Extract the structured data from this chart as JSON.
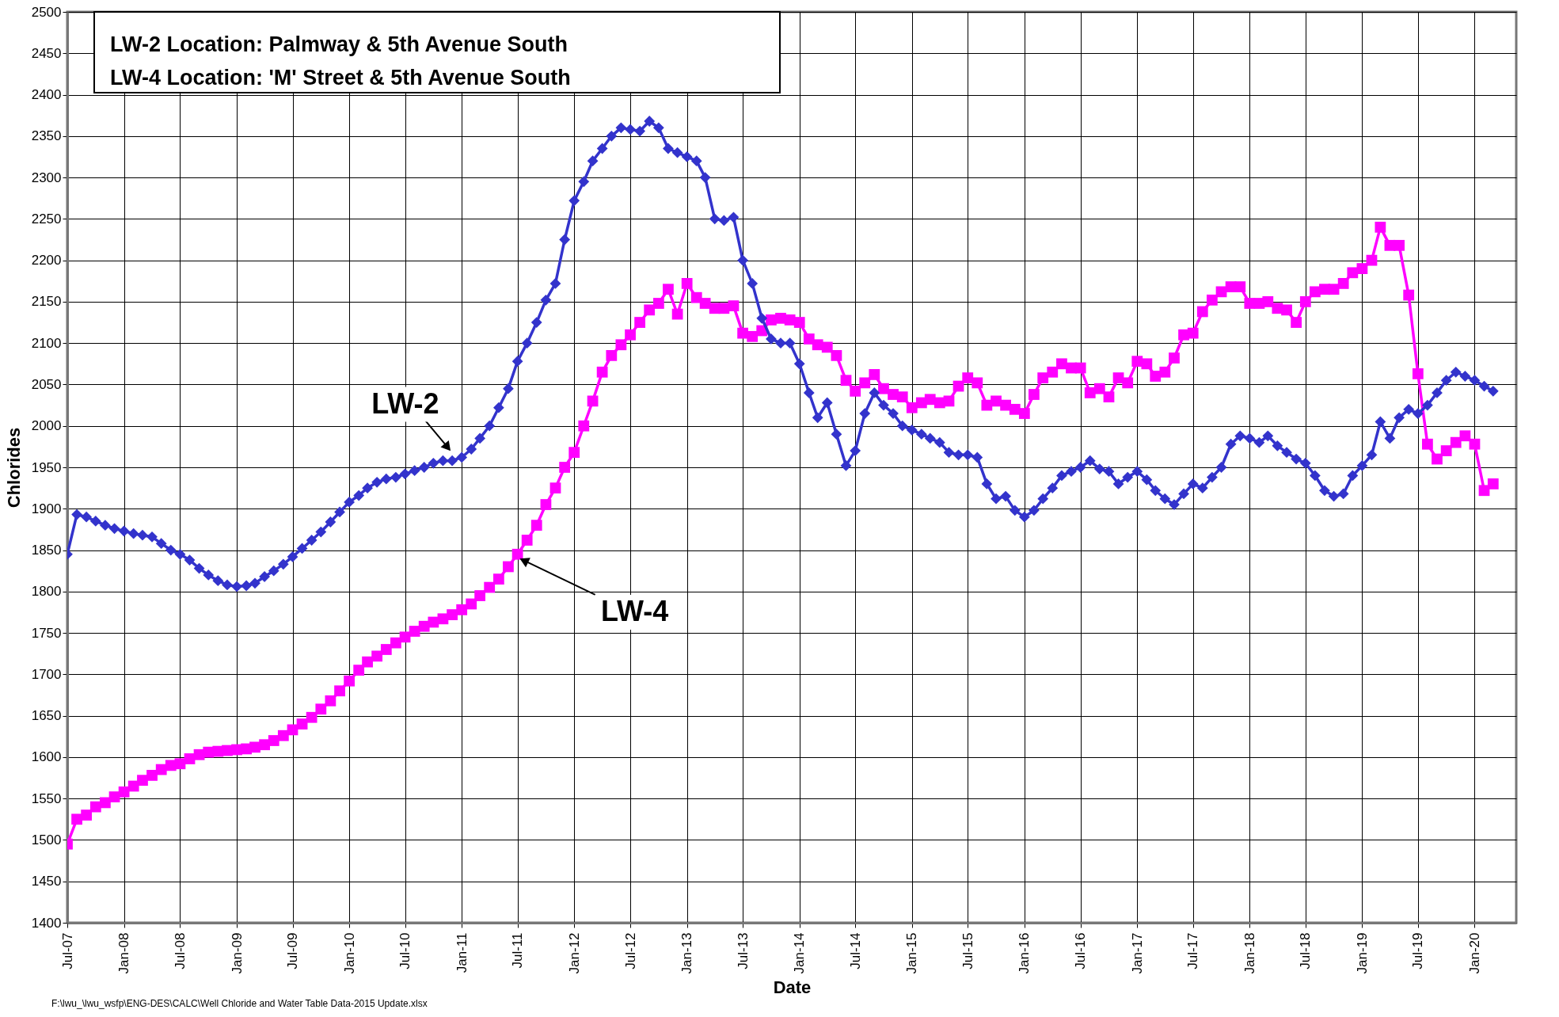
{
  "chart_data": {
    "type": "line",
    "xlabel": "Date",
    "ylabel": "Chlorides",
    "annotations": [
      "LW-2 Location: Palmway  & 5th Avenue South",
      "LW-4 Location:  'M' Street & 5th Avenue South",
      "F:\\lwu_\\lwu_wsfp\\ENG-DES\\CALC\\Well Chloride and Water Table Data-2015 Update.xlsx"
    ],
    "x": [
      "2007-07",
      "2007-08",
      "2007-09",
      "2007-10",
      "2007-11",
      "2007-12",
      "2008-01",
      "2008-02",
      "2008-03",
      "2008-04",
      "2008-05",
      "2008-06",
      "2008-07",
      "2008-08",
      "2008-09",
      "2008-10",
      "2008-11",
      "2008-12",
      "2009-01",
      "2009-02",
      "2009-03",
      "2009-04",
      "2009-05",
      "2009-06",
      "2009-07",
      "2009-08",
      "2009-09",
      "2009-10",
      "2009-11",
      "2009-12",
      "2010-01",
      "2010-02",
      "2010-03",
      "2010-04",
      "2010-05",
      "2010-06",
      "2010-07",
      "2010-08",
      "2010-09",
      "2010-10",
      "2010-11",
      "2010-12",
      "2011-01",
      "2011-02",
      "2011-03",
      "2011-04",
      "2011-05",
      "2011-06",
      "2011-07",
      "2011-08",
      "2011-09",
      "2011-10",
      "2011-11",
      "2011-12",
      "2012-01",
      "2012-02",
      "2012-03",
      "2012-04",
      "2012-05",
      "2012-06",
      "2012-07",
      "2012-08",
      "2012-09",
      "2012-10",
      "2012-11",
      "2012-12",
      "2013-01",
      "2013-02",
      "2013-03",
      "2013-04",
      "2013-05",
      "2013-06",
      "2013-07",
      "2013-08",
      "2013-09",
      "2013-10",
      "2013-11",
      "2013-12",
      "2014-01",
      "2014-02",
      "2014-03",
      "2014-04",
      "2014-05",
      "2014-06",
      "2014-07",
      "2014-08",
      "2014-09",
      "2014-10",
      "2014-11",
      "2014-12",
      "2015-01",
      "2015-02",
      "2015-03",
      "2015-04",
      "2015-05",
      "2015-06",
      "2015-07",
      "2015-08",
      "2015-09",
      "2015-10",
      "2015-11",
      "2015-12",
      "2016-01",
      "2016-02",
      "2016-03",
      "2016-04",
      "2016-05",
      "2016-06",
      "2016-07",
      "2016-08",
      "2016-09",
      "2016-10",
      "2016-11",
      "2016-12",
      "2017-01",
      "2017-02",
      "2017-03",
      "2017-04",
      "2017-05",
      "2017-06",
      "2017-07",
      "2017-08",
      "2017-09",
      "2017-10",
      "2017-11",
      "2017-12",
      "2018-01",
      "2018-02",
      "2018-03",
      "2018-04",
      "2018-05",
      "2018-06",
      "2018-07",
      "2018-08",
      "2018-09",
      "2018-10",
      "2018-11",
      "2018-12",
      "2019-01",
      "2019-02",
      "2019-03",
      "2019-04",
      "2019-05",
      "2019-06",
      "2019-07",
      "2019-08",
      "2019-09",
      "2019-10",
      "2019-11",
      "2019-12",
      "2020-01",
      "2020-02",
      "2020-03"
    ],
    "series": [
      {
        "name": "LW-2",
        "color": "#3333cc",
        "marker": "diamond",
        "values": [
          1845,
          1893,
          1890,
          1885,
          1880,
          1876,
          1873,
          1870,
          1868,
          1866,
          1858,
          1850,
          1845,
          1838,
          1828,
          1820,
          1813,
          1808,
          1806,
          1807,
          1810,
          1818,
          1825,
          1833,
          1842,
          1852,
          1862,
          1872,
          1884,
          1896,
          1908,
          1916,
          1925,
          1932,
          1936,
          1938,
          1942,
          1946,
          1950,
          1955,
          1958,
          1958,
          1962,
          1972,
          1985,
          2000,
          2022,
          2045,
          2078,
          2100,
          2125,
          2152,
          2172,
          2225,
          2272,
          2295,
          2320,
          2335,
          2350,
          2360,
          2358,
          2356,
          2368,
          2360,
          2335,
          2330,
          2325,
          2320,
          2300,
          2250,
          2248,
          2252,
          2200,
          2172,
          2130,
          2105,
          2100,
          2100,
          2075,
          2040,
          2010,
          2028,
          1990,
          1952,
          1970,
          2015,
          2040,
          2025,
          2015,
          2000,
          1995,
          1990,
          1985,
          1980,
          1968,
          1965,
          1965,
          1962,
          1930,
          1912,
          1915,
          1898,
          1890,
          1898,
          1912,
          1925,
          1940,
          1945,
          1950,
          1958,
          1948,
          1945,
          1930,
          1938,
          1945,
          1935,
          1922,
          1912,
          1905,
          1918,
          1930,
          1925,
          1938,
          1950,
          1978,
          1988,
          1985,
          1980,
          1988,
          1976,
          1968,
          1960,
          1955,
          1940,
          1922,
          1915,
          1918,
          1940,
          1952,
          1965,
          2005,
          1985,
          2010,
          2020,
          2015,
          2025,
          2040,
          2055,
          2065,
          2060,
          2055,
          2048,
          2042
        ]
      },
      {
        "name": "LW-4",
        "color": "#ff00ff",
        "marker": "square",
        "values": [
          1495,
          1525,
          1530,
          1540,
          1545,
          1552,
          1558,
          1565,
          1572,
          1578,
          1585,
          1590,
          1592,
          1598,
          1603,
          1606,
          1607,
          1608,
          1609,
          1610,
          1612,
          1615,
          1620,
          1626,
          1633,
          1640,
          1648,
          1658,
          1668,
          1680,
          1692,
          1705,
          1715,
          1722,
          1730,
          1738,
          1745,
          1752,
          1758,
          1763,
          1767,
          1772,
          1778,
          1785,
          1795,
          1805,
          1815,
          1830,
          1845,
          1862,
          1880,
          1905,
          1925,
          1950,
          1968,
          2000,
          2030,
          2065,
          2085,
          2098,
          2110,
          2125,
          2140,
          2148,
          2165,
          2135,
          2172,
          2155,
          2148,
          2142,
          2142,
          2145,
          2112,
          2108,
          2115,
          2128,
          2130,
          2128,
          2125,
          2105,
          2098,
          2095,
          2085,
          2055,
          2042,
          2052,
          2062,
          2045,
          2038,
          2035,
          2022,
          2028,
          2032,
          2028,
          2030,
          2048,
          2058,
          2052,
          2025,
          2030,
          2025,
          2020,
          2015,
          2038,
          2058,
          2065,
          2075,
          2070,
          2070,
          2040,
          2045,
          2035,
          2058,
          2052,
          2078,
          2075,
          2060,
          2065,
          2082,
          2110,
          2112,
          2138,
          2152,
          2162,
          2168,
          2168,
          2148,
          2148,
          2150,
          2142,
          2140,
          2125,
          2150,
          2162,
          2165,
          2165,
          2172,
          2185,
          2190,
          2200,
          2240,
          2218,
          2218,
          2158,
          2063,
          1978,
          1960,
          1970,
          1980,
          1988,
          1978,
          1922,
          1930
        ]
      }
    ],
    "xlim": [
      "2007-07",
      "2020-05-15"
    ],
    "xticks": [
      {
        "value": "2007-07",
        "label": "Jul-07"
      },
      {
        "value": "2008-01",
        "label": "Jan-08"
      },
      {
        "value": "2008-07",
        "label": "Jul-08"
      },
      {
        "value": "2009-01",
        "label": "Jan-09"
      },
      {
        "value": "2009-07",
        "label": "Jul-09"
      },
      {
        "value": "2010-01",
        "label": "Jan-10"
      },
      {
        "value": "2010-07",
        "label": "Jul-10"
      },
      {
        "value": "2011-01",
        "label": "Jan-11"
      },
      {
        "value": "2011-07",
        "label": "Jul-11"
      },
      {
        "value": "2012-01",
        "label": "Jan-12"
      },
      {
        "value": "2012-07",
        "label": "Jul-12"
      },
      {
        "value": "2013-01",
        "label": "Jan-13"
      },
      {
        "value": "2013-07",
        "label": "Jul-13"
      },
      {
        "value": "2014-01",
        "label": "Jan-14"
      },
      {
        "value": "2014-07",
        "label": "Jul-14"
      },
      {
        "value": "2015-01",
        "label": "Jan-15"
      },
      {
        "value": "2015-07",
        "label": "Jul-15"
      },
      {
        "value": "2016-01",
        "label": "Jan-16"
      },
      {
        "value": "2016-07",
        "label": "Jul-16"
      },
      {
        "value": "2017-01",
        "label": "Jan-17"
      },
      {
        "value": "2017-07",
        "label": "Jul-17"
      },
      {
        "value": "2018-01",
        "label": "Jan-18"
      },
      {
        "value": "2018-07",
        "label": "Jul-18"
      },
      {
        "value": "2019-01",
        "label": "Jan-19"
      },
      {
        "value": "2019-07",
        "label": "Jul-19"
      },
      {
        "value": "2020-01",
        "label": "Jan-20"
      }
    ],
    "ylim": [
      1400,
      2500
    ],
    "yticks": [
      1400,
      1450,
      1500,
      1550,
      1600,
      1650,
      1700,
      1750,
      1800,
      1850,
      1900,
      1950,
      2000,
      2050,
      2100,
      2150,
      2200,
      2250,
      2300,
      2350,
      2400,
      2450,
      2500
    ],
    "grid": true,
    "legend": false
  }
}
